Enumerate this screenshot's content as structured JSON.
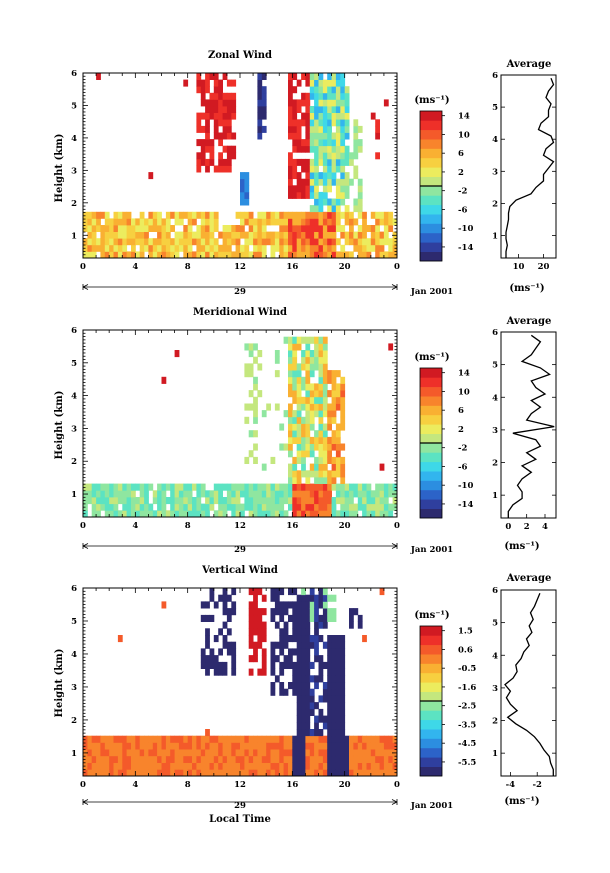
{
  "chart_data": [
    {
      "type": "heatmap",
      "title": "Zonal Wind",
      "ylabel": "Height (km)",
      "xticks": [
        "0",
        "4",
        "8",
        "12",
        "16",
        "20",
        "0"
      ],
      "yticks": [
        "1",
        "2",
        "3",
        "4",
        "5",
        "6"
      ],
      "xlim": [
        0,
        24
      ],
      "ylim": [
        0.3,
        6
      ],
      "date_day": "29",
      "date_label": "Jan 2001",
      "colorbar": {
        "unit": "(ms⁻¹)",
        "ticks": [
          "14",
          "10",
          "6",
          "2",
          "-2",
          "-6",
          "-10",
          "-14"
        ],
        "range": [
          -16,
          16
        ]
      },
      "profile": {
        "title": "Average",
        "xlabel": "(ms⁻¹)",
        "xticks": [
          "10",
          "20"
        ],
        "xlim": [
          3,
          25
        ],
        "heights": [
          0.3,
          0.5,
          0.7,
          0.9,
          1.1,
          1.3,
          1.5,
          1.7,
          1.9,
          2.1,
          2.3,
          2.5,
          2.7,
          2.9,
          3.1,
          3.3,
          3.5,
          3.7,
          3.9,
          4.1,
          4.3,
          4.5,
          4.7,
          4.9,
          5.1,
          5.3,
          5.5,
          5.7,
          5.9
        ],
        "values": [
          5,
          5,
          5.5,
          5,
          5,
          5.5,
          6,
          6,
          6.5,
          9,
          15,
          17,
          20,
          20,
          22,
          24,
          20,
          21,
          24,
          23,
          18,
          19,
          22,
          22,
          23,
          21,
          22,
          24,
          23
        ]
      }
    },
    {
      "type": "heatmap",
      "title": "Meridional Wind",
      "ylabel": "Height (km)",
      "xticks": [
        "0",
        "4",
        "8",
        "12",
        "16",
        "20",
        "0"
      ],
      "yticks": [
        "1",
        "2",
        "3",
        "4",
        "5",
        "6"
      ],
      "xlim": [
        0,
        24
      ],
      "ylim": [
        0.3,
        6
      ],
      "date_day": "29",
      "date_label": "Jan 2001",
      "colorbar": {
        "unit": "(ms⁻¹)",
        "ticks": [
          "14",
          "10",
          "6",
          "2",
          "-2",
          "-6",
          "-10",
          "-14"
        ],
        "range": [
          -16,
          16
        ]
      },
      "profile": {
        "title": "Average",
        "xlabel": "(ms⁻¹)",
        "xticks": [
          "0",
          "2",
          "4"
        ],
        "xlim": [
          -0.8,
          5.2
        ],
        "heights": [
          0.3,
          0.5,
          0.7,
          0.9,
          1.1,
          1.3,
          1.5,
          1.7,
          1.9,
          2.1,
          2.3,
          2.5,
          2.7,
          2.9,
          3.1,
          3.3,
          3.5,
          3.7,
          3.9,
          4.1,
          4.3,
          4.5,
          4.7,
          4.9,
          5.1,
          5.3,
          5.5,
          5.7,
          5.9
        ],
        "values": [
          0,
          0,
          0.5,
          1.5,
          1.5,
          1,
          1.5,
          2.5,
          1.5,
          3,
          2,
          3.5,
          3,
          0.5,
          5,
          2,
          2.5,
          3.5,
          2.5,
          4,
          3,
          2.5,
          4.5,
          3.5,
          1.5,
          2.5,
          3,
          3.5,
          2.5
        ]
      }
    },
    {
      "type": "heatmap",
      "title": "Vertical Wind",
      "ylabel": "Height (km)",
      "xlabel": "Local Time",
      "xticks": [
        "0",
        "4",
        "8",
        "12",
        "16",
        "20",
        "0"
      ],
      "yticks": [
        "1",
        "2",
        "3",
        "4",
        "5",
        "6"
      ],
      "xlim": [
        0,
        24
      ],
      "ylim": [
        0.3,
        6
      ],
      "date_day": "29",
      "date_label": "Jan 2001",
      "colorbar": {
        "unit": "(ms⁻¹)",
        "ticks": [
          "1.5",
          "0.6",
          "-0.5",
          "-1.6",
          "-2.5",
          "-3.5",
          "-4.5",
          "-5.5"
        ],
        "range": [
          -6,
          2
        ]
      },
      "profile": {
        "title": "Average",
        "xlabel": "(ms⁻¹)",
        "xticks": [
          "-4",
          "-2"
        ],
        "xlim": [
          -4.7,
          -0.6
        ],
        "heights": [
          0.3,
          0.5,
          0.7,
          0.9,
          1.1,
          1.3,
          1.5,
          1.7,
          1.9,
          2.1,
          2.3,
          2.5,
          2.7,
          2.9,
          3.1,
          3.3,
          3.5,
          3.7,
          3.9,
          4.1,
          4.3,
          4.5,
          4.7,
          4.9,
          5.1,
          5.3,
          5.5,
          5.7,
          5.9
        ],
        "values": [
          -0.8,
          -0.8,
          -1,
          -1.1,
          -1.5,
          -1.8,
          -2.2,
          -2.8,
          -3.6,
          -4.2,
          -3.5,
          -4,
          -4.3,
          -4,
          -4.4,
          -3.8,
          -3.5,
          -3.6,
          -3.2,
          -3,
          -2.6,
          -2.8,
          -2.4,
          -2.6,
          -2.3,
          -2.5,
          -2.2,
          -2,
          -1.8
        ]
      }
    }
  ]
}
